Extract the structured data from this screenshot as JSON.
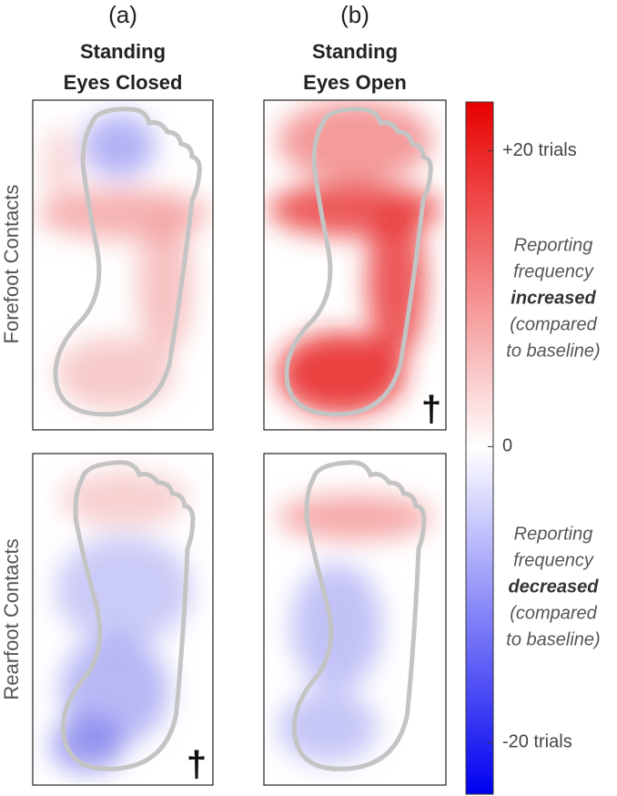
{
  "columns": [
    {
      "letter": "(a)",
      "title": [
        "Standing",
        "Eyes Closed"
      ]
    },
    {
      "letter": "(b)",
      "title": [
        "Standing",
        "Eyes Open"
      ]
    }
  ],
  "rows": [
    "Forefoot Contacts",
    "Rearfoot Contacts"
  ],
  "markers": {
    "forefoot_eyes_open": "†",
    "rearfoot_eyes_closed": "†"
  },
  "colorbar": {
    "lim": [
      -23.5,
      23.3
    ],
    "ticks": [
      {
        "value": 20,
        "label": "+20 trials"
      },
      0,
      {
        "value": -20,
        "label": "-20 trials"
      }
    ],
    "increased_note": [
      "Reporting",
      "frequency",
      "increased",
      "(compared",
      "to baseline)"
    ],
    "decreased_note": [
      "Reporting",
      "frequency",
      "decreased",
      "(compared",
      "to baseline)"
    ]
  }
}
